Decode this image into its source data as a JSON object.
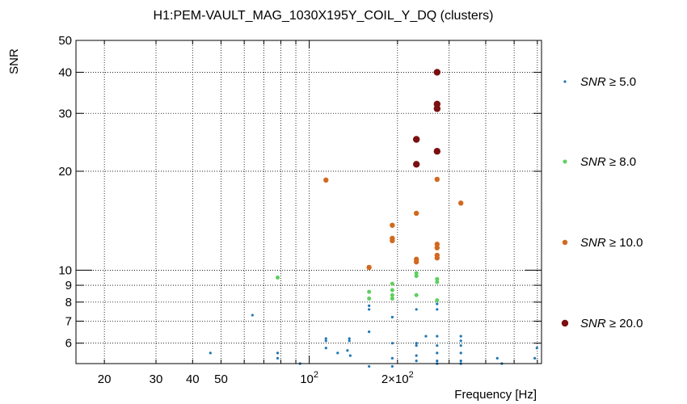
{
  "chart_data": {
    "type": "scatter",
    "title": "H1:PEM-VAULT_MAG_1030X195Y_COIL_Y_DQ (clusters)",
    "xlabel": "Frequency [Hz]",
    "ylabel": "SNR",
    "x_scale": "log",
    "y_scale": "log",
    "xlim": [
      16,
      620
    ],
    "ylim": [
      5.2,
      50
    ],
    "grid": true,
    "legend_position": "right",
    "x_ticks": [
      {
        "value": 20,
        "label": "20"
      },
      {
        "value": 30,
        "label": "30"
      },
      {
        "value": 40,
        "label": "40"
      },
      {
        "value": 50,
        "label": "50"
      },
      {
        "value": 100,
        "label": "10",
        "sup": "2"
      },
      {
        "value": 200,
        "label": "2×10",
        "sup": "2"
      }
    ],
    "y_ticks": [
      {
        "value": 6,
        "label": "6"
      },
      {
        "value": 7,
        "label": "7"
      },
      {
        "value": 8,
        "label": "8"
      },
      {
        "value": 9,
        "label": "9"
      },
      {
        "value": 10,
        "label": "10"
      },
      {
        "value": 20,
        "label": "20"
      },
      {
        "value": 30,
        "label": "30"
      },
      {
        "value": 40,
        "label": "40"
      },
      {
        "value": 50,
        "label": "50"
      }
    ],
    "series": [
      {
        "name": "SNR ≥ 5.0",
        "color": "#1f77b4",
        "radius": 1.6,
        "points": [
          [
            46,
            5.6
          ],
          [
            64,
            7.3
          ],
          [
            78,
            5.6
          ],
          [
            78,
            5.4
          ],
          [
            93,
            5.2
          ],
          [
            114,
            6.2
          ],
          [
            114,
            6.1
          ],
          [
            114,
            5.8
          ],
          [
            125,
            5.6
          ],
          [
            135,
            5.7
          ],
          [
            137,
            6.1
          ],
          [
            137,
            6.2
          ],
          [
            138,
            5.5
          ],
          [
            160,
            7.6
          ],
          [
            160,
            7.8
          ],
          [
            160,
            6.5
          ],
          [
            160,
            5.1
          ],
          [
            192,
            7.2
          ],
          [
            192,
            6.0
          ],
          [
            192,
            5.4
          ],
          [
            192,
            5.1
          ],
          [
            232,
            7.6
          ],
          [
            232,
            6.0
          ],
          [
            232,
            5.9
          ],
          [
            232,
            5.5
          ],
          [
            232,
            5.3
          ],
          [
            250,
            6.3
          ],
          [
            273,
            7.9
          ],
          [
            273,
            7.6
          ],
          [
            273,
            6.3
          ],
          [
            273,
            5.9
          ],
          [
            273,
            5.6
          ],
          [
            273,
            5.3
          ],
          [
            273,
            5.2
          ],
          [
            329,
            6.3
          ],
          [
            329,
            6.1
          ],
          [
            329,
            5.9
          ],
          [
            329,
            5.6
          ],
          [
            329,
            5.3
          ],
          [
            329,
            5.2
          ],
          [
            438,
            5.4
          ],
          [
            454,
            5.2
          ],
          [
            588,
            5.4
          ],
          [
            598,
            5.8
          ]
        ]
      },
      {
        "name": "SNR ≥ 8.0",
        "color": "#5ecf5e",
        "radius": 2.5,
        "points": [
          [
            78,
            9.5
          ],
          [
            160,
            8.6
          ],
          [
            160,
            8.2
          ],
          [
            192,
            9.1
          ],
          [
            192,
            8.7
          ],
          [
            192,
            8.4
          ],
          [
            192,
            8.2
          ],
          [
            232,
            9.8
          ],
          [
            232,
            9.6
          ],
          [
            232,
            8.4
          ],
          [
            273,
            9.4
          ],
          [
            273,
            9.2
          ],
          [
            273,
            8.1
          ]
        ]
      },
      {
        "name": "SNR ≥ 10.0",
        "color": "#d2691e",
        "radius": 3.2,
        "points": [
          [
            114,
            18.8
          ],
          [
            160,
            10.2
          ],
          [
            192,
            13.7
          ],
          [
            192,
            12.5
          ],
          [
            192,
            12.3
          ],
          [
            232,
            14.9
          ],
          [
            232,
            10.8
          ],
          [
            232,
            10.6
          ],
          [
            273,
            18.9
          ],
          [
            273,
            12.0
          ],
          [
            273,
            11.7
          ],
          [
            273,
            11.1
          ],
          [
            273,
            10.9
          ],
          [
            329,
            16.0
          ]
        ]
      },
      {
        "name": "SNR ≥ 20.0",
        "color": "#7a1010",
        "radius": 4.2,
        "points": [
          [
            232,
            25.0
          ],
          [
            232,
            21.0
          ],
          [
            273,
            40.0
          ],
          [
            273,
            32.0
          ],
          [
            273,
            31.0
          ],
          [
            273,
            23.0
          ]
        ]
      }
    ]
  }
}
